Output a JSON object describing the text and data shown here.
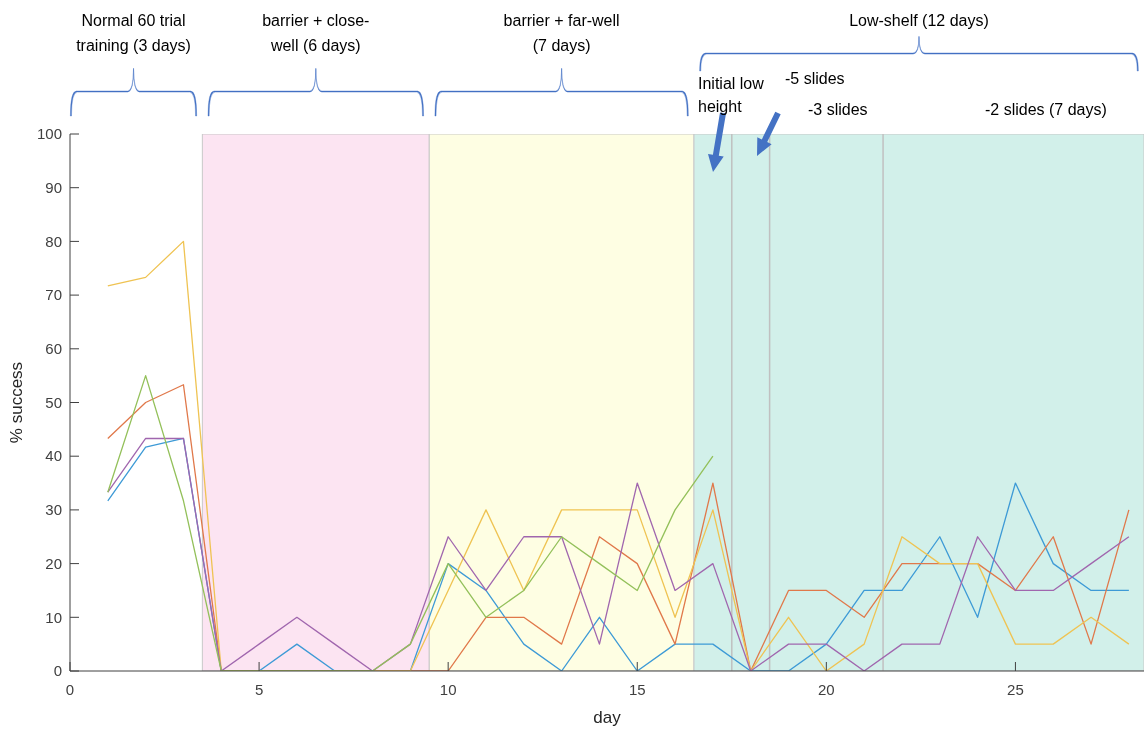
{
  "chart_data": {
    "type": "line",
    "xlabel": "day",
    "ylabel": "% success",
    "x": [
      1,
      2,
      3,
      4,
      5,
      6,
      7,
      8,
      9,
      10,
      11,
      12,
      13,
      14,
      15,
      16,
      17,
      18,
      19,
      20,
      21,
      22,
      23,
      24,
      25,
      26,
      27,
      28
    ],
    "series": [
      {
        "color": "#3d9ad6",
        "values": [
          31.7,
          41.7,
          43.3,
          0,
          0,
          5,
          0,
          0,
          0,
          20,
          15,
          5,
          0,
          10,
          0,
          5,
          5,
          0,
          0,
          5,
          15,
          15,
          25,
          10,
          35,
          20,
          15,
          15
        ]
      },
      {
        "color": "#e0784a",
        "values": [
          43.3,
          50,
          53.3,
          0,
          0,
          0,
          0,
          0,
          0,
          0,
          10,
          10,
          5,
          25,
          20,
          5,
          35,
          0,
          15,
          15,
          10,
          20,
          20,
          20,
          15,
          25,
          5,
          30
        ]
      },
      {
        "color": "#efc352",
        "values": [
          71.7,
          73.3,
          80,
          0,
          0,
          0,
          0,
          0,
          0,
          15,
          30,
          15,
          30,
          30,
          30,
          10,
          30,
          0,
          10,
          0,
          5,
          25,
          20,
          20,
          5,
          5,
          10,
          5
        ]
      },
      {
        "color": "#a066ae",
        "values": [
          33.3,
          43.3,
          43.3,
          0,
          5,
          10,
          5,
          0,
          5,
          25,
          15,
          25,
          25,
          5,
          35,
          15,
          20,
          0,
          5,
          5,
          0,
          5,
          5,
          25,
          15,
          15,
          20,
          25
        ]
      },
      {
        "color": "#93c05a",
        "values": [
          33.3,
          55,
          31.7,
          0,
          0,
          0,
          0,
          0,
          5,
          20,
          10,
          15,
          25,
          20,
          15,
          30,
          40,
          null,
          null,
          null,
          null,
          null,
          null,
          null,
          null,
          null,
          null,
          null
        ]
      }
    ],
    "xlim": [
      0,
      28.4
    ],
    "ylim": [
      0,
      100
    ],
    "xticks": [
      0,
      5,
      10,
      15,
      20,
      25
    ],
    "yticks": [
      0,
      10,
      20,
      30,
      40,
      50,
      60,
      70,
      80,
      90,
      100
    ],
    "bands": [
      {
        "axis": "x",
        "from": 3.5,
        "to": 9.5,
        "color": "#fce4f2"
      },
      {
        "axis": "x",
        "from": 9.5,
        "to": 16.5,
        "color": "#fefee3"
      },
      {
        "axis": "x",
        "from": 16.5,
        "to": 28.4,
        "color": "#d2f0ea"
      }
    ],
    "ref_lines": [
      {
        "axis": "x",
        "value": 17.5,
        "color": "#c0c0c0"
      },
      {
        "axis": "x",
        "value": 18.5,
        "color": "#c0c0c0"
      },
      {
        "axis": "x",
        "value": 21.5,
        "color": "#c0c0c0"
      }
    ],
    "annotations": [
      "Normal 60 trial training (3 days)",
      "barrier + close-well (6 days)",
      "barrier + far-well (7 days)",
      "Low-shelf (12 days)",
      "Initial low height",
      "-5 slides",
      "-3 slides",
      "-2 slides (7 days)"
    ]
  }
}
